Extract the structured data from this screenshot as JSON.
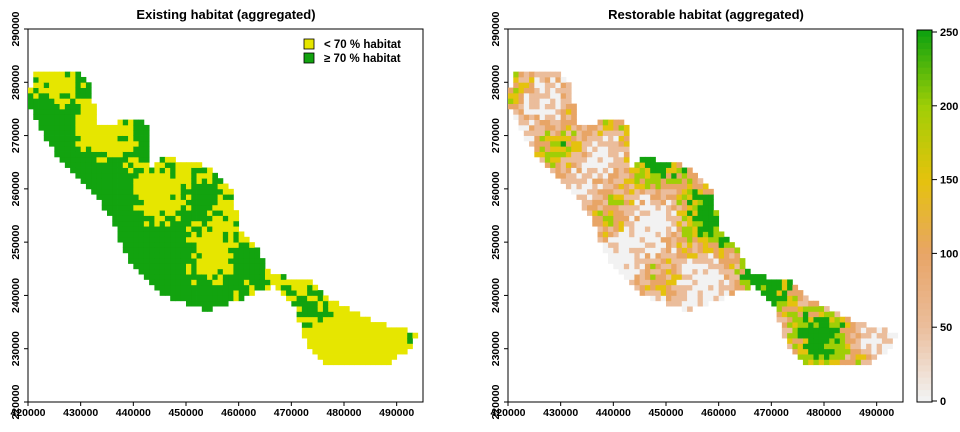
{
  "panels": [
    {
      "title": "Existing habitat (aggregated)",
      "x_ticks": [
        "420000",
        "430000",
        "440000",
        "450000",
        "460000",
        "470000",
        "480000",
        "490000"
      ],
      "y_ticks": [
        "220000",
        "230000",
        "240000",
        "250000",
        "260000",
        "270000",
        "280000",
        "290000"
      ],
      "legend": [
        {
          "label": "< 70 % habitat",
          "color": "#e6e600"
        },
        {
          "label": "≥ 70 % habitat",
          "color": "#12a30f"
        }
      ]
    },
    {
      "title": "Restorable habitat (aggregated)",
      "x_ticks": [
        "420000",
        "430000",
        "440000",
        "450000",
        "460000",
        "470000",
        "480000",
        "490000"
      ],
      "y_ticks": [
        "220000",
        "230000",
        "240000",
        "250000",
        "260000",
        "270000",
        "280000",
        "290000"
      ],
      "colorbar": {
        "ticks": [
          "0",
          "50",
          "100",
          "150",
          "200",
          "250"
        ],
        "colors": [
          "#f2f2f2",
          "#ebbd9b",
          "#e8a566",
          "#e5c20d",
          "#a0ce06",
          "#12a30f"
        ]
      }
    }
  ],
  "chart_data": [
    {
      "type": "heatmap",
      "title": "Existing habitat (aggregated)",
      "xlim": [
        420000,
        495000
      ],
      "ylim": [
        220000,
        290000
      ],
      "categories": [
        "< 70 % habitat",
        "≥ 70 % habitat"
      ],
      "region_outline": [
        [
          420000,
          276000
        ],
        [
          421000,
          282000
        ],
        [
          429000,
          282000
        ],
        [
          432000,
          280000
        ],
        [
          433000,
          272000
        ],
        [
          441000,
          273000
        ],
        [
          443000,
          272000
        ],
        [
          443000,
          264000
        ],
        [
          446000,
          266000
        ],
        [
          455000,
          264000
        ],
        [
          459000,
          259000
        ],
        [
          460000,
          253000
        ],
        [
          464000,
          248000
        ],
        [
          466000,
          244000
        ],
        [
          473000,
          243000
        ],
        [
          478000,
          239000
        ],
        [
          484000,
          236000
        ],
        [
          490000,
          234000
        ],
        [
          494000,
          233000
        ],
        [
          493000,
          230000
        ],
        [
          488000,
          227000
        ],
        [
          483000,
          227000
        ],
        [
          476000,
          227000
        ],
        [
          473000,
          231000
        ],
        [
          471000,
          237000
        ],
        [
          467000,
          242000
        ],
        [
          462000,
          240000
        ],
        [
          454000,
          237000
        ],
        [
          446000,
          240000
        ],
        [
          441000,
          244000
        ],
        [
          438000,
          249000
        ],
        [
          436000,
          254000
        ],
        [
          433000,
          259000
        ],
        [
          429000,
          263000
        ],
        [
          425000,
          267000
        ],
        [
          422000,
          272000
        ],
        [
          420000,
          276000
        ]
      ]
    },
    {
      "type": "heatmap",
      "title": "Restorable habitat (aggregated)",
      "xlim": [
        420000,
        495000
      ],
      "ylim": [
        220000,
        290000
      ],
      "zlim": [
        0,
        250
      ],
      "region_outline": [
        [
          420000,
          276000
        ],
        [
          421000,
          282000
        ],
        [
          429000,
          282000
        ],
        [
          432000,
          280000
        ],
        [
          433000,
          272000
        ],
        [
          441000,
          273000
        ],
        [
          443000,
          272000
        ],
        [
          443000,
          264000
        ],
        [
          446000,
          266000
        ],
        [
          455000,
          264000
        ],
        [
          459000,
          259000
        ],
        [
          460000,
          253000
        ],
        [
          464000,
          248000
        ],
        [
          466000,
          244000
        ],
        [
          473000,
          243000
        ],
        [
          478000,
          239000
        ],
        [
          484000,
          236000
        ],
        [
          490000,
          234000
        ],
        [
          494000,
          233000
        ],
        [
          493000,
          230000
        ],
        [
          488000,
          227000
        ],
        [
          483000,
          227000
        ],
        [
          476000,
          227000
        ],
        [
          473000,
          231000
        ],
        [
          471000,
          237000
        ],
        [
          467000,
          242000
        ],
        [
          462000,
          240000
        ],
        [
          454000,
          237000
        ],
        [
          446000,
          240000
        ],
        [
          441000,
          244000
        ],
        [
          438000,
          249000
        ],
        [
          436000,
          254000
        ],
        [
          433000,
          259000
        ],
        [
          429000,
          263000
        ],
        [
          425000,
          267000
        ],
        [
          422000,
          272000
        ],
        [
          420000,
          276000
        ]
      ]
    }
  ]
}
